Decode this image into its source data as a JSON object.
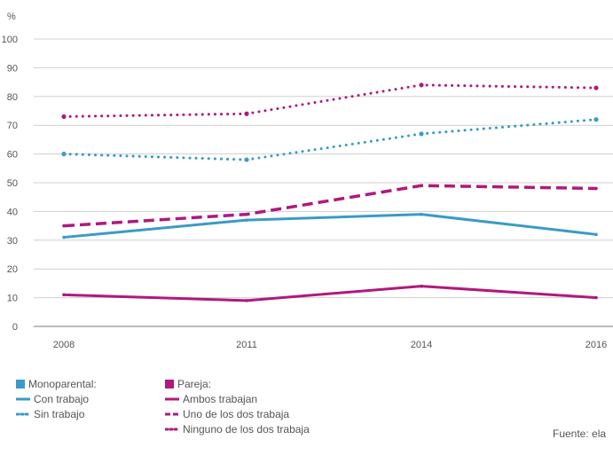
{
  "chart_data": {
    "type": "line",
    "ylabel": "%",
    "x": [
      "2008",
      "2011",
      "2014",
      "2016"
    ],
    "ylim": [
      0,
      100
    ],
    "yticks": [
      0,
      10,
      20,
      30,
      40,
      50,
      60,
      70,
      80,
      90,
      100
    ],
    "grid": true,
    "series": [
      {
        "name": "Con trabajo",
        "group": "Monoparental:",
        "style": "solid",
        "color": "#3a9bc6",
        "values": [
          31,
          37,
          39,
          32
        ]
      },
      {
        "name": "Sin trabajo",
        "group": "Monoparental:",
        "style": "dotted",
        "color": "#3a9bc6",
        "values": [
          60,
          58,
          67,
          72
        ]
      },
      {
        "name": "Ambos trabajan",
        "group": "Pareja:",
        "style": "solid",
        "color": "#b0197e",
        "values": [
          11,
          9,
          14,
          10
        ]
      },
      {
        "name": "Uno de los dos trabaja",
        "group": "Pareja:",
        "style": "dashed",
        "color": "#b0197e",
        "values": [
          35,
          39,
          49,
          48
        ]
      },
      {
        "name": "Ninguno de los dos trabaja",
        "group": "Pareja:",
        "style": "dotted",
        "color": "#b0197e",
        "values": [
          73,
          74,
          84,
          83
        ]
      }
    ]
  },
  "legend": {
    "group1_title": "Monoparental:",
    "group2_title": "Pareja:",
    "items": {
      "con_trabajo": "Con trabajo",
      "sin_trabajo": "Sin trabajo",
      "ambos": "Ambos trabajan",
      "uno": "Uno de los dos trabaja",
      "ninguno": "Ninguno de los dos trabaja"
    },
    "colors": {
      "blue": "#3a9bc6",
      "magenta": "#b0197e"
    }
  },
  "source": "Fuente: ela"
}
